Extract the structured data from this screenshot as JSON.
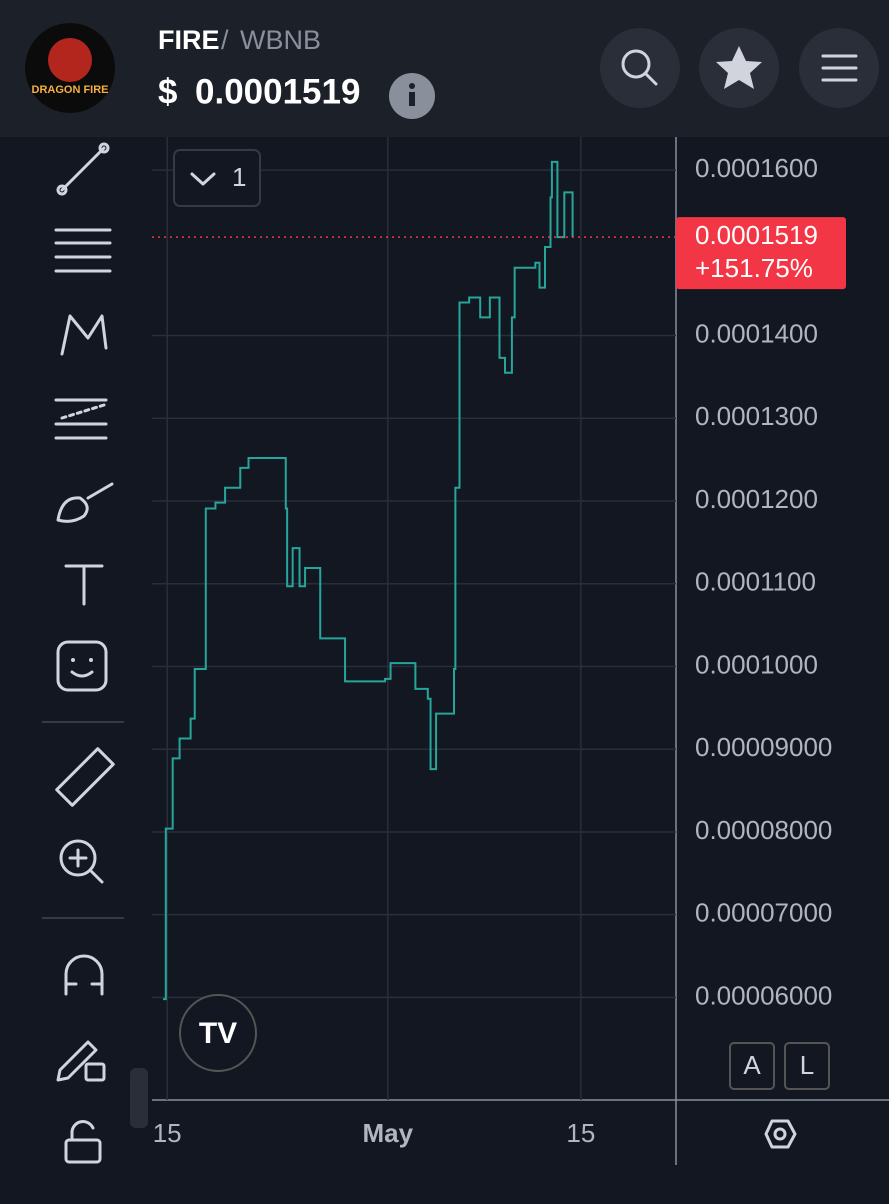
{
  "header": {
    "logo_text": "DRAGON FIRE",
    "base": "FIRE",
    "separator": "/",
    "quote": "WBNB",
    "currency": "$",
    "price": "0.0001519"
  },
  "chart": {
    "type": "line",
    "interval": "1",
    "color": "#26a69a",
    "grid": true,
    "x": [
      -0.3,
      -0.1,
      0.4,
      0.9,
      1.7,
      2.0,
      2.8,
      3.5,
      4.2,
      5.3,
      5.9,
      7.8,
      8.6,
      8.7,
      9.1,
      9.6,
      10.0,
      10.9,
      11.1,
      12.8,
      12.9,
      15.8,
      16.2,
      17.6,
      18.0,
      18.9,
      19.1,
      19.5,
      20.7,
      20.8,
      20.9,
      21.2,
      21.9,
      22.7,
      23.4,
      24.1,
      24.5,
      25.0,
      25.2,
      26.7,
      27.0,
      27.4,
      27.8,
      27.9,
      28.3,
      28.8,
      29.3,
      29.4
    ],
    "values": [
      5.98e-05,
      8.04e-05,
      8.89e-05,
      9.13e-05,
      9.37e-05,
      9.97e-05,
      0.0001191,
      0.0001198,
      0.0001216,
      0.000124,
      0.0001252,
      0.0001252,
      0.0001191,
      0.0001097,
      0.0001143,
      0.0001097,
      0.0001119,
      0.0001119,
      0.0001034,
      0.0001034,
      9.82e-05,
      9.85e-05,
      0.0001004,
      0.0001004,
      9.73e-05,
      9.61e-05,
      8.76e-05,
      9.43e-05,
      9.43e-05,
      9.97e-05,
      0.0001216,
      0.000144,
      0.0001446,
      0.0001422,
      0.0001446,
      0.0001373,
      0.0001355,
      0.0001422,
      0.0001482,
      0.0001488,
      0.0001458,
      0.0001507,
      0.0001567,
      0.000161,
      0.0001519,
      0.0001573,
      0.0001573,
      0.0001519
    ],
    "xlim": [
      -1.1,
      36.9
    ],
    "xticks": [
      {
        "value": 0,
        "label": "15"
      },
      {
        "value": 16,
        "label": "May"
      },
      {
        "value": 30,
        "label": "15"
      }
    ],
    "ylim": [
      4.76e-05,
      0.000164
    ],
    "yticks": [
      {
        "value": 0.00016,
        "label": "0.0001600"
      },
      {
        "value": 0.00014,
        "label": "0.0001400"
      },
      {
        "value": 0.00013,
        "label": "0.0001300"
      },
      {
        "value": 0.00012,
        "label": "0.0001200"
      },
      {
        "value": 0.00011,
        "label": "0.0001100"
      },
      {
        "value": 0.0001,
        "label": "0.0001000"
      },
      {
        "value": 9e-05,
        "label": "0.00009000"
      },
      {
        "value": 8e-05,
        "label": "0.00008000"
      },
      {
        "value": 7e-05,
        "label": "0.00007000"
      },
      {
        "value": 6e-05,
        "label": "0.00006000"
      }
    ],
    "current_price": {
      "value": 0.0001519,
      "label": "0.0001519"
    },
    "change": "+151.75%",
    "scale_buttons": [
      "A",
      "L"
    ]
  }
}
